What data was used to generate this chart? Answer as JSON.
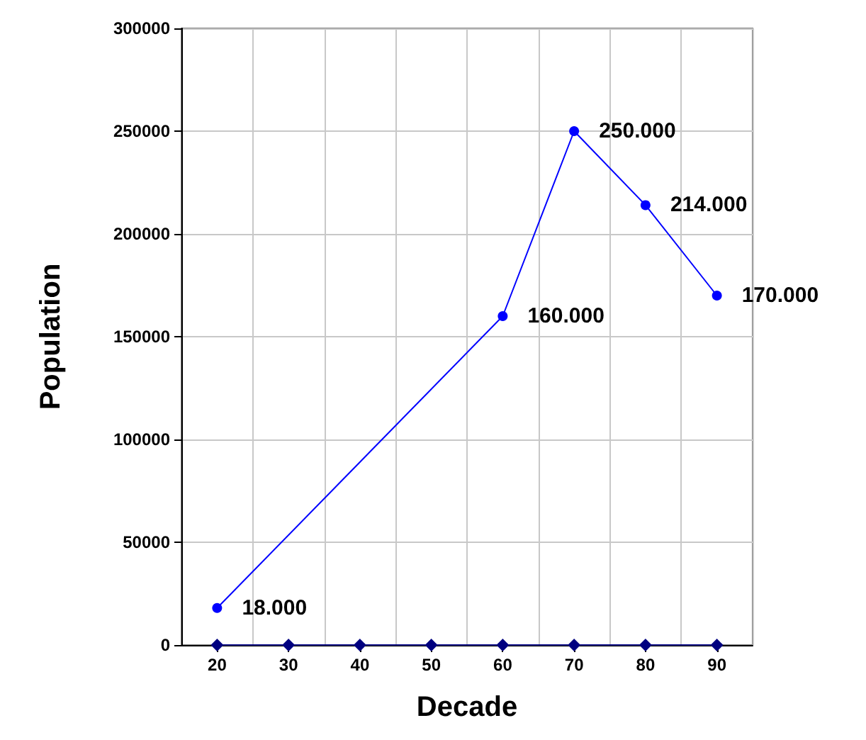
{
  "chart_data": {
    "type": "line",
    "xlabel": "Decade",
    "ylabel": "Population",
    "categories": [
      "20",
      "30",
      "40",
      "50",
      "60",
      "70",
      "80",
      "90"
    ],
    "series": [
      {
        "color": "#0000ff",
        "marker": "circle",
        "x": [
          "20",
          "60",
          "70",
          "80",
          "90"
        ],
        "values": [
          18000,
          160000,
          250000,
          214000,
          170000
        ],
        "value_labels": [
          "18.000",
          "160.000",
          "250.000",
          "214.000",
          "170.000"
        ]
      },
      {
        "color": "#000080",
        "marker": "diamond",
        "values": [
          0,
          0,
          0,
          0,
          0,
          0,
          0,
          0
        ]
      }
    ],
    "ylim": [
      0,
      300000
    ],
    "yticks": [
      0,
      50000,
      100000,
      150000,
      200000,
      250000,
      300000
    ],
    "grid": true
  }
}
